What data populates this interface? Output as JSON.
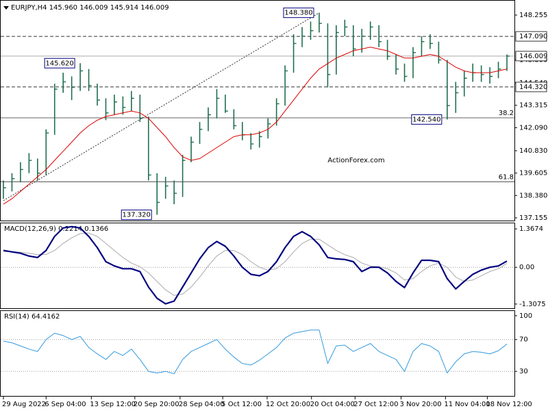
{
  "chart_data": [
    {
      "type": "ohlc",
      "title": "EURJPY,H4 145.960 146.009 145.914 146.009",
      "watermark": "ActionForex.com",
      "xlim": [
        -0.4,
        59.8
      ],
      "ylim": [
        137.005,
        149.08
      ],
      "yticks": [
        148.255,
        {
          "value": 145.8,
          "label": "145.800"
        },
        {
          "value": 144.54,
          "label": "144.540"
        },
        143.315,
        {
          "value": 142.09,
          "label": "142.090"
        },
        {
          "value": 140.83,
          "label": "140.830"
        },
        139.605,
        {
          "value": 138.38,
          "label": "138.380"
        },
        137.155
      ],
      "color": "#1f6e4f",
      "high": [
        139.2,
        139.6,
        140.2,
        140.7,
        140.4,
        142.0,
        144.5,
        145.1,
        144.9,
        145.62,
        145.3,
        144.5,
        143.7,
        143.9,
        143.8,
        144.1,
        143.9,
        142.7,
        139.6,
        139.4,
        139.2,
        140.6,
        141.6,
        142.4,
        143.2,
        144.2,
        143.9,
        143.1,
        142.4,
        141.8,
        141.9,
        142.6,
        143.7,
        145.5,
        147.2,
        147.6,
        147.9,
        148.38,
        147.8,
        147.7,
        148.0,
        147.7,
        147.5,
        147.9,
        147.7,
        146.9,
        146.1,
        145.6,
        146.5,
        147.1,
        147.2,
        146.8,
        145.8,
        144.6,
        145.2,
        145.6,
        145.5,
        145.4,
        145.7,
        146.1
      ],
      "low": [
        138.2,
        138.6,
        139.1,
        139.6,
        139.2,
        139.5,
        141.7,
        144.0,
        143.6,
        144.1,
        144.1,
        143.3,
        142.5,
        142.8,
        142.8,
        143.0,
        142.4,
        139.2,
        137.32,
        138.2,
        137.9,
        138.3,
        140.2,
        141.2,
        141.9,
        142.6,
        142.9,
        142.0,
        141.4,
        140.9,
        141.0,
        141.5,
        142.2,
        143.3,
        145.1,
        146.5,
        146.9,
        147.3,
        144.3,
        145.0,
        147.1,
        146.0,
        146.2,
        146.9,
        146.5,
        145.8,
        145.0,
        144.6,
        144.8,
        146.0,
        146.4,
        145.6,
        142.54,
        142.9,
        143.8,
        144.6,
        144.6,
        144.5,
        144.8,
        145.2
      ],
      "close": [
        138.8,
        139.3,
        139.8,
        140.3,
        139.6,
        141.8,
        144.2,
        144.6,
        144.3,
        145.2,
        144.4,
        143.6,
        142.9,
        143.5,
        143.2,
        143.7,
        142.6,
        139.5,
        138.0,
        138.9,
        138.5,
        140.3,
        141.3,
        142.0,
        142.8,
        143.7,
        143.0,
        142.2,
        141.7,
        141.2,
        141.6,
        142.3,
        143.4,
        145.2,
        146.7,
        147.1,
        147.4,
        147.8,
        145.0,
        147.3,
        147.6,
        146.4,
        147.1,
        147.6,
        146.8,
        146.0,
        145.3,
        144.9,
        146.2,
        146.8,
        146.7,
        145.8,
        143.3,
        144.0,
        144.8,
        145.1,
        145.0,
        144.9,
        145.3,
        146.009
      ],
      "ma": {
        "color": "#dd0000",
        "values": [
          137.9,
          138.2,
          138.6,
          139.0,
          139.4,
          139.8,
          140.3,
          140.8,
          141.3,
          141.8,
          142.2,
          142.5,
          142.7,
          142.8,
          142.9,
          143.0,
          142.9,
          142.6,
          142.1,
          141.6,
          141.0,
          140.5,
          140.3,
          140.4,
          140.7,
          141.0,
          141.3,
          141.6,
          141.7,
          141.7,
          141.8,
          142.0,
          142.4,
          143.0,
          143.6,
          144.2,
          144.8,
          145.3,
          145.6,
          145.9,
          146.1,
          146.3,
          146.4,
          146.5,
          146.4,
          146.3,
          146.1,
          145.9,
          145.9,
          146.0,
          146.1,
          146.0,
          145.7,
          145.4,
          145.2,
          145.1,
          145.1,
          145.1,
          145.2,
          145.3
        ]
      },
      "trendline": {
        "x": [
          0,
          37
        ],
        "values": [
          138.1,
          148.38
        ]
      },
      "levels": [
        {
          "value": 147.09,
          "label": "147.090",
          "style": "dashed"
        },
        {
          "value": 146.009,
          "label": "146.009",
          "style": "solid"
        },
        {
          "value": 144.32,
          "label": "144.320",
          "style": "dashed"
        }
      ],
      "fib_levels": [
        {
          "value": 142.63,
          "label": "38.2"
        },
        {
          "value": 139.13,
          "label": "61.8"
        }
      ],
      "annotations": [
        {
          "x": 37,
          "value": 148.38,
          "label": "148.380"
        },
        {
          "x": 9,
          "value": 145.62,
          "label": "145.620"
        },
        {
          "x": 18,
          "value": 137.32,
          "label": "137.320"
        },
        {
          "x": 52,
          "value": 142.54,
          "label": "142.540"
        }
      ]
    },
    {
      "type": "line",
      "title": "MACD(12,26,9) 0.2214 0.1366",
      "xlim": [
        -0.4,
        59.8
      ],
      "ylim": [
        -1.457,
        1.591
      ],
      "yticks": [
        1.3674,
        {
          "value": 0,
          "label": "0.00"
        },
        -1.3075
      ],
      "levels": [
        0
      ],
      "lines": [
        {
          "color": "#aaaaaa",
          "width": 1,
          "values": [
            0.55,
            0.56,
            0.54,
            0.5,
            0.45,
            0.46,
            0.6,
            0.85,
            1.05,
            1.2,
            1.22,
            1.1,
            0.85,
            0.6,
            0.35,
            0.15,
            0.02,
            -0.2,
            -0.5,
            -0.8,
            -1.0,
            -0.95,
            -0.7,
            -0.35,
            0.05,
            0.4,
            0.6,
            0.6,
            0.45,
            0.2,
            0.0,
            -0.1,
            -0.05,
            0.2,
            0.55,
            0.85,
            1.0,
            1.0,
            0.8,
            0.6,
            0.45,
            0.35,
            0.15,
            0.05,
            0.02,
            -0.05,
            -0.2,
            -0.45,
            -0.4,
            -0.15,
            0.05,
            0.15,
            0.0,
            -0.35,
            -0.5,
            -0.45,
            -0.3,
            -0.15,
            -0.05,
            0.1366
          ]
        },
        {
          "color": "#000080",
          "width": 2.2,
          "values": [
            0.6,
            0.55,
            0.5,
            0.4,
            0.35,
            0.6,
            1.1,
            1.4,
            1.45,
            1.4,
            1.1,
            0.7,
            0.2,
            0.05,
            -0.05,
            -0.05,
            -0.15,
            -0.7,
            -1.1,
            -1.3,
            -1.2,
            -0.7,
            -0.2,
            0.3,
            0.7,
            0.92,
            0.75,
            0.4,
            0.0,
            -0.25,
            -0.3,
            -0.15,
            0.2,
            0.7,
            1.1,
            1.27,
            1.1,
            0.8,
            0.35,
            0.3,
            0.28,
            0.2,
            -0.15,
            0.0,
            0.0,
            -0.2,
            -0.5,
            -0.72,
            -0.2,
            0.25,
            0.25,
            0.2,
            -0.4,
            -0.77,
            -0.5,
            -0.25,
            -0.1,
            0.0,
            0.05,
            0.2214
          ]
        }
      ]
    },
    {
      "type": "line",
      "title": "RSI(14) 64.4162",
      "xlim": [
        -0.4,
        59.8
      ],
      "ylim": [
        -1.3,
        106.8
      ],
      "yticks": [
        100,
        70,
        30
      ],
      "levels": [
        70,
        30
      ],
      "lines": [
        {
          "color": "#3399dd",
          "width": 1,
          "values": [
            68,
            66,
            62,
            58,
            55,
            70,
            78,
            75,
            70,
            74,
            60,
            52,
            45,
            55,
            50,
            58,
            45,
            30,
            28,
            30,
            27,
            45,
            55,
            60,
            65,
            70,
            58,
            48,
            40,
            38,
            44,
            52,
            60,
            72,
            78,
            80,
            82,
            82,
            40,
            62,
            63,
            55,
            60,
            65,
            55,
            50,
            45,
            30,
            55,
            65,
            62,
            55,
            28,
            42,
            52,
            55,
            54,
            52,
            56,
            64.4162
          ]
        }
      ],
      "xticks": [
        {
          "value": 0,
          "label": "29 Aug 2022"
        },
        {
          "value": 5,
          "label": "6 Sep 04:00"
        },
        {
          "value": 10.3,
          "label": "13 Sep 12:00"
        },
        {
          "value": 15.4,
          "label": "20 Sep 20:00"
        },
        {
          "value": 20.7,
          "label": "28 Sep 04:00"
        },
        {
          "value": 25.7,
          "label": "5 Oct 12:00"
        },
        {
          "value": 30.9,
          "label": "12 Oct 20:00"
        },
        {
          "value": 36.1,
          "label": "20 Oct 04:00"
        },
        {
          "value": 41.2,
          "label": "27 Oct 12:00"
        },
        {
          "value": 46.6,
          "label": "3 Nov 20:00"
        },
        {
          "value": 51.8,
          "label": "11 Nov 04:00"
        },
        {
          "value": 56.7,
          "label": "18 Nov 12:00"
        }
      ]
    }
  ]
}
